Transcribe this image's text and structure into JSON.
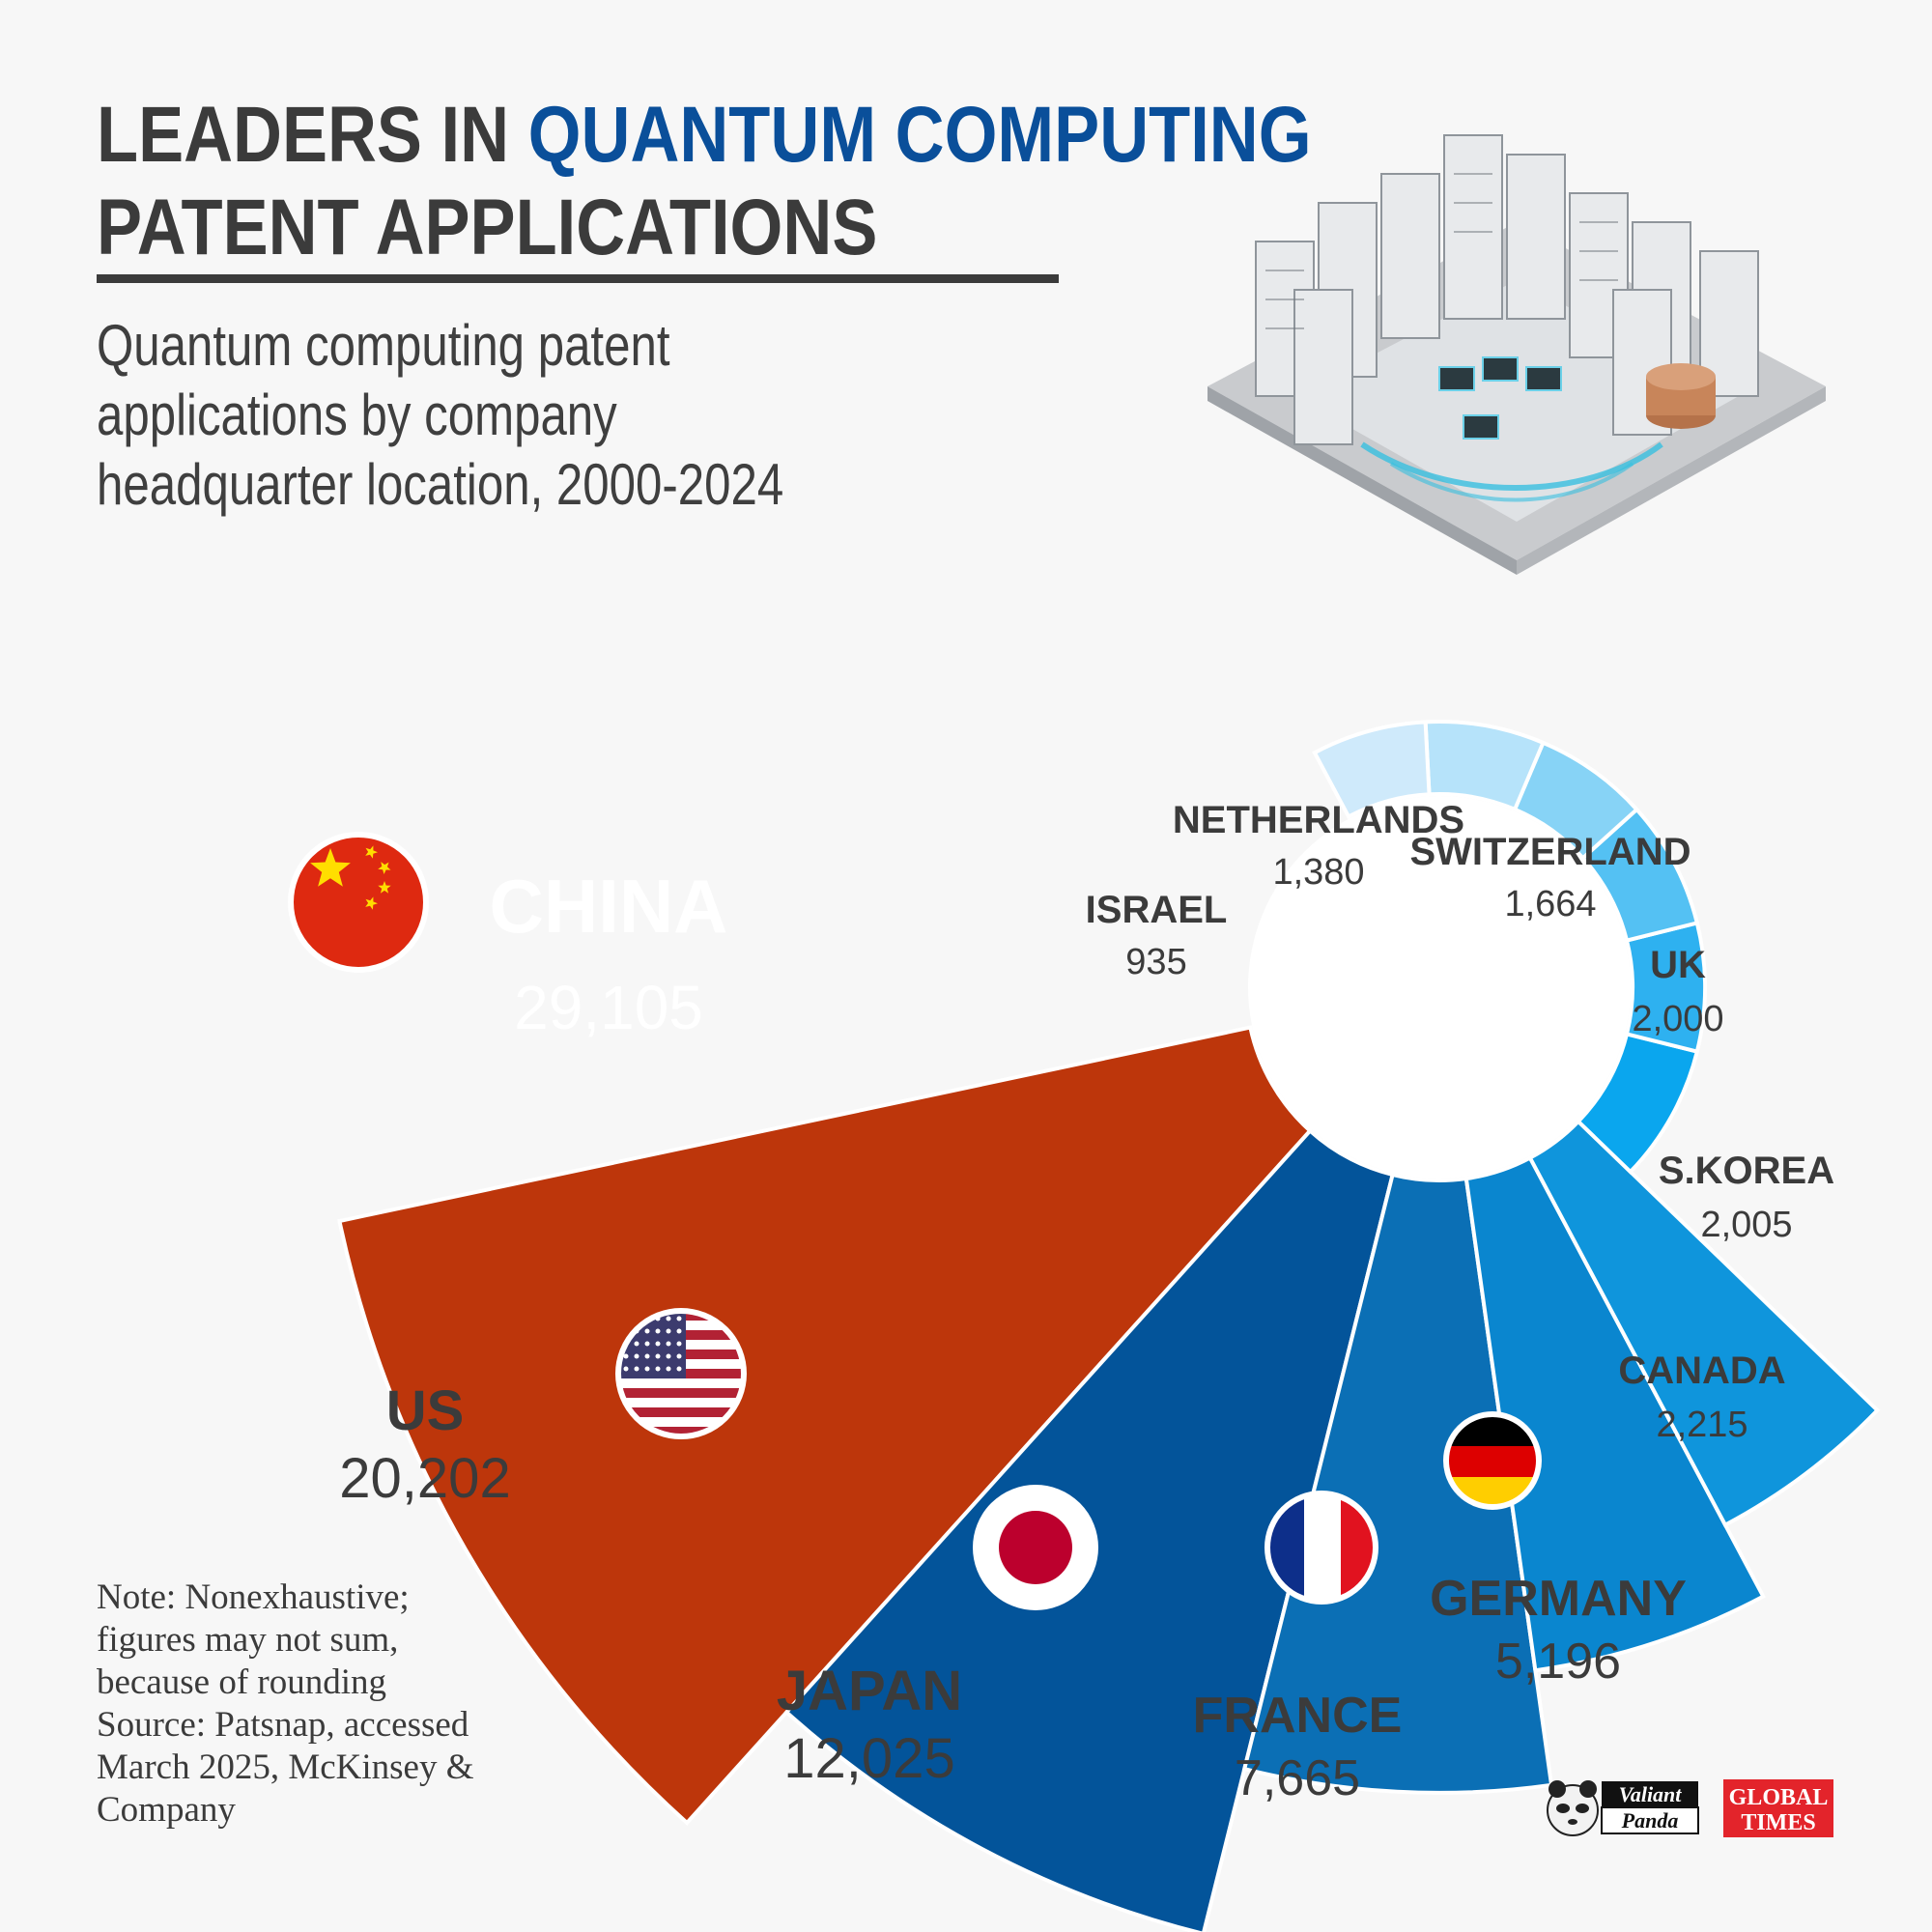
{
  "header": {
    "title_line1_part1": "LEADERS IN ",
    "title_line1_part2": "QUANTUM COMPUTING",
    "title_line2": "PATENT APPLICATIONS",
    "subtitle_line1": "Quantum computing patent",
    "subtitle_line2": "applications by company",
    "subtitle_line3": "headquarter location, 2000-2024"
  },
  "chart_data": {
    "type": "pie",
    "style": "nightingale-rose",
    "categories": [
      "CHINA",
      "US",
      "JAPAN",
      "FRANCE",
      "GERMANY",
      "CANADA",
      "S.KOREA",
      "UK",
      "SWITZERLAND",
      "NETHERLANDS",
      "ISRAEL"
    ],
    "values": [
      29105,
      20202,
      12025,
      7665,
      5196,
      2215,
      2005,
      2000,
      1664,
      1380,
      935
    ],
    "value_labels": [
      "29,105",
      "20,202",
      "12,025",
      "7,665",
      "5,196",
      "2,215",
      "2,005",
      "2,000",
      "1,664",
      "1,380",
      "935"
    ],
    "colors": [
      "#bd360b",
      "#03549a",
      "#0b6fb5",
      "#0a86cf",
      "#0f95dc",
      "#0aa6ee",
      "#2eb1f0",
      "#54c1f3",
      "#87d3f6",
      "#b6e3fa",
      "#cfeafb"
    ]
  },
  "flags": [
    "china-flag-icon",
    "us-flag-icon",
    "japan-flag-icon",
    "france-flag-icon",
    "germany-flag-icon"
  ],
  "note": {
    "line1": "Note: Nonexhaustive;",
    "line2": "figures may not sum,",
    "line3": "because of rounding",
    "line4": "Source: Patsnap, accessed",
    "line5": "March 2025, McKinsey &",
    "line6": "Company"
  },
  "logos": {
    "valiant_line1": "Valiant",
    "valiant_line2": "Panda",
    "gt_line1": "GLOBAL",
    "gt_line2": "TIMES"
  }
}
